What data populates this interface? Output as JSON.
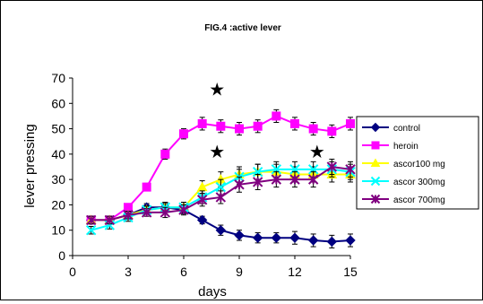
{
  "chart_data": {
    "type": "line",
    "title": "FIG.4 :active lever",
    "xlabel": "days",
    "ylabel": "lever pressing",
    "xlim": [
      0,
      15
    ],
    "ylim": [
      0,
      70
    ],
    "xticks": [
      0,
      3,
      6,
      9,
      12,
      15
    ],
    "yticks": [
      0,
      10,
      20,
      30,
      40,
      50,
      60,
      70
    ],
    "grid": false,
    "legend_position": "right",
    "x": [
      1,
      2,
      3,
      4,
      5,
      6,
      7,
      8,
      9,
      10,
      11,
      12,
      13,
      14,
      15
    ],
    "series": [
      {
        "name": "control",
        "color": "#000080",
        "marker": "diamond",
        "values": [
          14,
          14,
          16,
          19,
          19,
          18,
          14,
          10,
          8,
          7,
          7,
          7,
          6,
          5.5,
          6
        ],
        "errors": [
          1.5,
          1.5,
          1.5,
          1.5,
          1.5,
          1.5,
          1.5,
          2,
          2,
          2,
          2,
          2.5,
          2.5,
          2.5,
          2.5
        ]
      },
      {
        "name": "heroin",
        "color": "#ff00ff",
        "marker": "square",
        "values": [
          14,
          14,
          19,
          27,
          40,
          48,
          52,
          51,
          50,
          51,
          55,
          52,
          50,
          49,
          52
        ],
        "errors": [
          1.5,
          1.5,
          1.5,
          1.5,
          2,
          2,
          2.5,
          2.5,
          2.5,
          2.5,
          2.5,
          2.5,
          2.5,
          2.5,
          2.5
        ]
      },
      {
        "name": "ascor100 mg",
        "color": "#ffff00",
        "marker": "triangle",
        "values": [
          14,
          14,
          16,
          18,
          19,
          19,
          27,
          30,
          32,
          33,
          33,
          32,
          32,
          32,
          32
        ],
        "errors": [
          1.5,
          1.5,
          1.5,
          1.5,
          2,
          2,
          2.5,
          3,
          3,
          3,
          3,
          3,
          3,
          3,
          3
        ]
      },
      {
        "name": "ascor 300mg",
        "color": "#00ffff",
        "marker": "x",
        "values": [
          10,
          12,
          15,
          18,
          19,
          19,
          23,
          27,
          31,
          33,
          34,
          34,
          34,
          34,
          33
        ],
        "errors": [
          1.5,
          1.5,
          1.5,
          1.5,
          2,
          2,
          2.5,
          3,
          3,
          3,
          3,
          3,
          3,
          3,
          3
        ]
      },
      {
        "name": "ascor 700mg",
        "color": "#800080",
        "marker": "asterisk",
        "values": [
          14,
          14,
          16,
          17,
          17,
          18,
          22,
          23,
          28,
          29,
          30,
          30,
          30,
          35,
          34
        ],
        "errors": [
          1.5,
          1.5,
          1.5,
          1.5,
          2,
          2,
          2.5,
          2.5,
          3,
          3,
          3,
          3,
          3,
          3,
          3
        ]
      }
    ],
    "annotations": [
      {
        "text": "★",
        "x": 7.8,
        "y": 65.5
      },
      {
        "text": "★",
        "x": 7.8,
        "y": 41
      },
      {
        "text": "★",
        "x": 13.2,
        "y": 41
      }
    ]
  }
}
